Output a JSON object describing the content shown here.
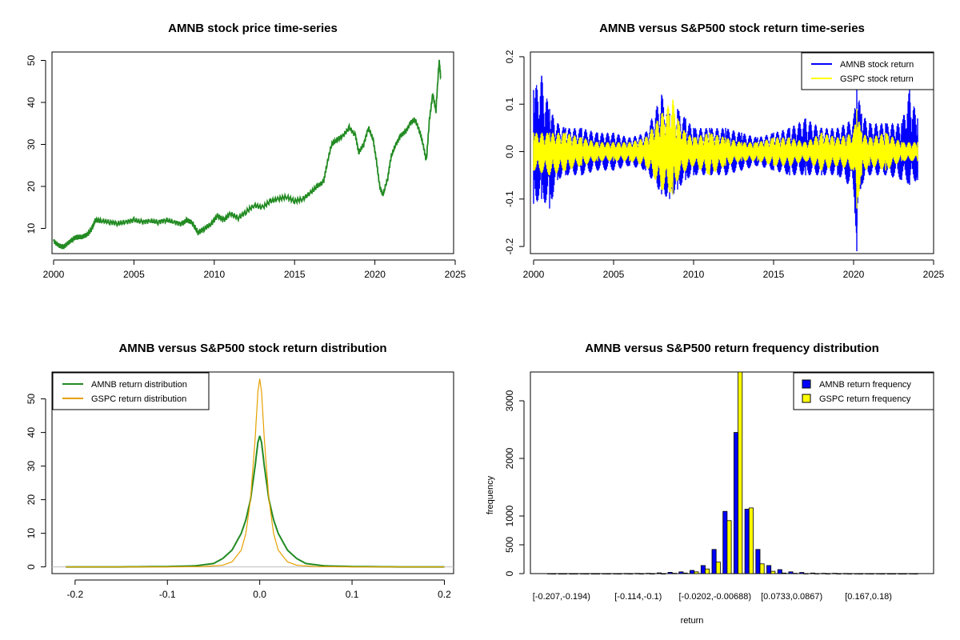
{
  "chart_data": [
    {
      "id": "price",
      "type": "line",
      "title": "AMNB stock price time-series",
      "xlim": [
        1999.9,
        2024.9
      ],
      "ylim": [
        4,
        52
      ],
      "xticks": [
        "2000",
        "2005",
        "2010",
        "2015",
        "2020",
        "2025"
      ],
      "yticks": [
        "10",
        "20",
        "30",
        "40",
        "50"
      ],
      "series": [
        {
          "color": "#228B22",
          "x": [
            2000.0,
            2000.3,
            2000.6,
            2000.9,
            2001.2,
            2001.5,
            2001.8,
            2002.1,
            2002.4,
            2002.6,
            2003.0,
            2003.5,
            2004.0,
            2004.5,
            2005.0,
            2005.5,
            2006.0,
            2006.5,
            2007.0,
            2007.5,
            2008.0,
            2008.3,
            2008.6,
            2009.0,
            2009.4,
            2009.8,
            2010.2,
            2010.6,
            2011.0,
            2011.5,
            2012.0,
            2012.5,
            2013.0,
            2013.5,
            2014.0,
            2014.5,
            2015.0,
            2015.5,
            2016.0,
            2016.4,
            2016.8,
            2017.0,
            2017.3,
            2017.6,
            2018.0,
            2018.4,
            2018.8,
            2019.0,
            2019.3,
            2019.6,
            2019.9,
            2020.1,
            2020.3,
            2020.5,
            2020.8,
            2021.0,
            2021.3,
            2021.6,
            2021.9,
            2022.2,
            2022.5,
            2022.8,
            2023.0,
            2023.2,
            2023.4,
            2023.6,
            2023.8,
            2024.0,
            2024.1
          ],
          "y": [
            7.0,
            6.0,
            5.5,
            6.5,
            7.5,
            8.0,
            8.0,
            8.5,
            10.0,
            12.0,
            11.8,
            11.5,
            11.2,
            11.5,
            12.0,
            11.5,
            11.8,
            11.5,
            12.0,
            11.5,
            11.0,
            12.0,
            11.5,
            9.0,
            10.0,
            11.0,
            13.0,
            12.0,
            13.5,
            12.5,
            14.0,
            15.5,
            15.0,
            16.5,
            17.0,
            17.5,
            16.5,
            17.0,
            18.5,
            20.0,
            21.0,
            25.0,
            30.0,
            31.0,
            32.0,
            34.0,
            32.0,
            28.0,
            30.0,
            34.0,
            31.0,
            26.0,
            20.0,
            18.0,
            22.0,
            27.0,
            30.0,
            32.0,
            33.0,
            35.0,
            36.0,
            33.0,
            30.0,
            26.0,
            36.0,
            42.0,
            38.0,
            50.0,
            46.0
          ]
        }
      ]
    },
    {
      "id": "returns",
      "type": "line",
      "title": "AMNB versus S&P500 stock return time-series",
      "xlim": [
        1999.8,
        2025.0
      ],
      "ylim": [
        -0.215,
        0.21
      ],
      "xticks": [
        "2000",
        "2005",
        "2010",
        "2015",
        "2020",
        "2025"
      ],
      "yticks": [
        "-0.2",
        "-0.1",
        "0.0",
        "0.1",
        "0.2"
      ],
      "legend": {
        "placement": "top-right",
        "items": [
          "AMNB stock return",
          "GSPC stock return"
        ]
      },
      "series": [
        {
          "name": "AMNB stock return",
          "color": "#0000FF",
          "x": [
            2000.0,
            2000.5,
            2001.0,
            2001.5,
            2002.0,
            2003.0,
            2004.0,
            2005.0,
            2006.0,
            2007.0,
            2008.0,
            2008.5,
            2009.0,
            2009.5,
            2010.0,
            2011.0,
            2012.0,
            2013.0,
            2014.0,
            2015.0,
            2016.0,
            2017.0,
            2018.0,
            2019.0,
            2020.0,
            2020.2,
            2020.5,
            2021.0,
            2022.0,
            2023.0,
            2023.5,
            2024.0
          ],
          "y_high": [
            0.13,
            0.16,
            0.09,
            0.06,
            0.05,
            0.05,
            0.04,
            0.04,
            0.03,
            0.04,
            0.12,
            0.08,
            0.09,
            0.07,
            0.05,
            0.05,
            0.05,
            0.04,
            0.03,
            0.04,
            0.05,
            0.07,
            0.05,
            0.05,
            0.07,
            0.14,
            0.08,
            0.06,
            0.06,
            0.06,
            0.13,
            0.07
          ],
          "y_low": [
            -0.11,
            -0.1,
            -0.12,
            -0.06,
            -0.05,
            -0.05,
            -0.04,
            -0.04,
            -0.03,
            -0.04,
            -0.09,
            -0.1,
            -0.08,
            -0.06,
            -0.05,
            -0.05,
            -0.05,
            -0.04,
            -0.03,
            -0.04,
            -0.05,
            -0.05,
            -0.05,
            -0.05,
            -0.08,
            -0.21,
            -0.07,
            -0.05,
            -0.05,
            -0.06,
            -0.07,
            -0.06
          ]
        },
        {
          "name": "GSPC stock return",
          "color": "#FFFF00",
          "x": [
            2000.0,
            2001.0,
            2002.0,
            2003.0,
            2004.0,
            2005.0,
            2006.0,
            2007.0,
            2008.0,
            2008.7,
            2009.0,
            2009.5,
            2010.0,
            2011.0,
            2012.0,
            2013.0,
            2014.0,
            2015.0,
            2016.0,
            2017.0,
            2018.0,
            2019.0,
            2020.0,
            2020.2,
            2020.5,
            2021.0,
            2022.0,
            2023.0,
            2024.0
          ],
          "y_high": [
            0.04,
            0.04,
            0.04,
            0.03,
            0.02,
            0.02,
            0.02,
            0.03,
            0.08,
            0.11,
            0.07,
            0.04,
            0.03,
            0.04,
            0.03,
            0.02,
            0.02,
            0.03,
            0.03,
            0.02,
            0.04,
            0.03,
            0.04,
            0.09,
            0.04,
            0.03,
            0.04,
            0.02,
            0.02
          ],
          "y_low": [
            -0.04,
            -0.05,
            -0.04,
            -0.03,
            -0.02,
            -0.02,
            -0.02,
            -0.03,
            -0.08,
            -0.09,
            -0.06,
            -0.04,
            -0.03,
            -0.05,
            -0.03,
            -0.02,
            -0.02,
            -0.03,
            -0.03,
            -0.02,
            -0.04,
            -0.03,
            -0.04,
            -0.12,
            -0.05,
            -0.03,
            -0.04,
            -0.02,
            -0.02
          ]
        }
      ]
    },
    {
      "id": "density",
      "type": "line",
      "title": "AMNB versus S&P500 stock return distribution",
      "xlim": [
        -0.225,
        0.21
      ],
      "ylim": [
        -2,
        58
      ],
      "xticks": [
        "-0.2",
        "-0.1",
        "0.0",
        "0.1",
        "0.2"
      ],
      "yticks": [
        "0",
        "10",
        "20",
        "30",
        "40",
        "50"
      ],
      "legend": {
        "placement": "top-left",
        "items": [
          "AMNB return distribution",
          "GSPC return distribution"
        ]
      },
      "series": [
        {
          "name": "AMNB return distribution",
          "color": "#228B22",
          "x": [
            -0.21,
            -0.15,
            -0.1,
            -0.07,
            -0.05,
            -0.04,
            -0.03,
            -0.02,
            -0.015,
            -0.01,
            -0.005,
            -0.002,
            0.0,
            0.002,
            0.005,
            0.01,
            0.015,
            0.02,
            0.03,
            0.04,
            0.05,
            0.07,
            0.1,
            0.15,
            0.2
          ],
          "y": [
            0,
            0,
            0.1,
            0.3,
            1,
            2.5,
            5,
            10,
            14,
            20,
            30,
            37,
            39,
            37,
            30,
            20,
            14,
            10,
            5,
            2.5,
            1,
            0.3,
            0.1,
            0,
            0
          ]
        },
        {
          "name": "GSPC return distribution",
          "color": "#E6A000",
          "x": [
            -0.21,
            -0.15,
            -0.1,
            -0.06,
            -0.04,
            -0.03,
            -0.02,
            -0.015,
            -0.01,
            -0.005,
            -0.002,
            0.0,
            0.002,
            0.005,
            0.01,
            0.015,
            0.02,
            0.03,
            0.04,
            0.06,
            0.1,
            0.15,
            0.2
          ],
          "y": [
            0,
            0,
            0,
            0.1,
            0.5,
            1.5,
            5,
            10,
            20,
            38,
            52,
            56,
            52,
            38,
            20,
            10,
            5,
            1.5,
            0.5,
            0.1,
            0,
            0,
            0
          ]
        }
      ]
    },
    {
      "id": "hist",
      "type": "bar",
      "title": "AMNB versus S&P500 return frequency distribution",
      "xlabel": "return",
      "ylabel": "frequency",
      "ylim": [
        0,
        3500
      ],
      "yticks": [
        "0",
        "500",
        "1000",
        "2000",
        "3000"
      ],
      "category_labels": [
        "[-0.207,-0.194)",
        "[-0.114,-0.1)",
        "[-0.0202,-0.00688)",
        "[0.0733,0.0867)",
        "[0.167,0.18)"
      ],
      "legend": {
        "placement": "top-right",
        "items": [
          "AMNB return frequency",
          "GSPC return frequency"
        ]
      },
      "series": [
        {
          "name": "AMNB return frequency",
          "color": "#0000FF",
          "values": [
            1,
            0,
            0,
            1,
            0,
            1,
            1,
            3,
            4,
            6,
            12,
            22,
            30,
            55,
            140,
            420,
            1080,
            2450,
            1120,
            420,
            140,
            70,
            30,
            20,
            10,
            5,
            5,
            3,
            2,
            1,
            1,
            0,
            0,
            1
          ]
        },
        {
          "name": "GSPC return frequency",
          "color": "#FFFF00",
          "values": [
            0,
            0,
            0,
            0,
            0,
            0,
            0,
            0,
            0,
            0,
            0,
            5,
            10,
            30,
            80,
            200,
            920,
            3500,
            1140,
            170,
            40,
            10,
            5,
            2,
            1,
            0,
            0,
            0,
            0,
            0,
            0,
            0,
            0,
            0
          ]
        }
      ]
    }
  ]
}
